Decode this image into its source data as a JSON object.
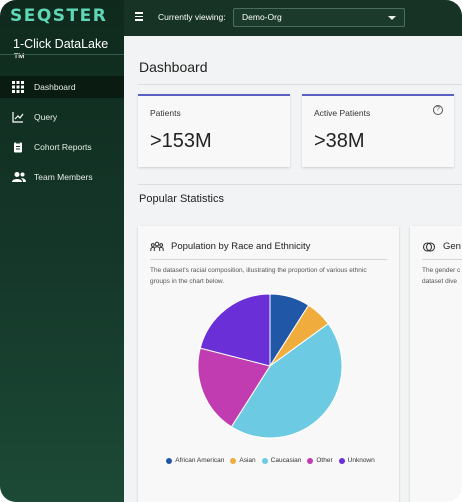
{
  "sidebar": {
    "brand": "SEQSTER",
    "product": "1-Click DataLake ™",
    "items": [
      {
        "label": "Dashboard",
        "icon": "grid-icon",
        "active": true
      },
      {
        "label": "Query",
        "icon": "chart-line-icon",
        "active": false
      },
      {
        "label": "Cohort Reports",
        "icon": "clipboard-icon",
        "active": false
      },
      {
        "label": "Team Members",
        "icon": "users-icon",
        "active": false
      }
    ]
  },
  "header": {
    "menu_icon": "hamburger-icon",
    "viewing_label": "Currently viewing:",
    "org_selected": "Demo-Org"
  },
  "main": {
    "title": "Dashboard",
    "cards": [
      {
        "label": "Patients",
        "value": ">153M"
      },
      {
        "label": "Active Patients",
        "value": ">38M",
        "help": "?"
      }
    ],
    "section_title": "Popular Statistics",
    "chart_card": {
      "title": "Population by Race and Ethnicity",
      "description": "The dataset's racial composition, illustrating the proportion of various ethnic groups in the chart below."
    },
    "chart_card_2": {
      "title": "Gen",
      "description_line1": "The gender c",
      "description_line2": "dataset dive"
    }
  },
  "colors": {
    "african_american": "#2057a6",
    "asian": "#f0ad3e",
    "caucasian": "#6ccbe3",
    "other": "#c03cb0",
    "unknown": "#6a2fd6",
    "card_accent": "#5a5fc2"
  },
  "chart_data": {
    "type": "pie",
    "title": "Population by Race and Ethnicity",
    "categories": [
      "African American",
      "Asian",
      "Caucasian",
      "Other",
      "Unknown"
    ],
    "values": [
      9,
      6,
      44,
      20,
      21
    ],
    "legend": "bottom"
  }
}
